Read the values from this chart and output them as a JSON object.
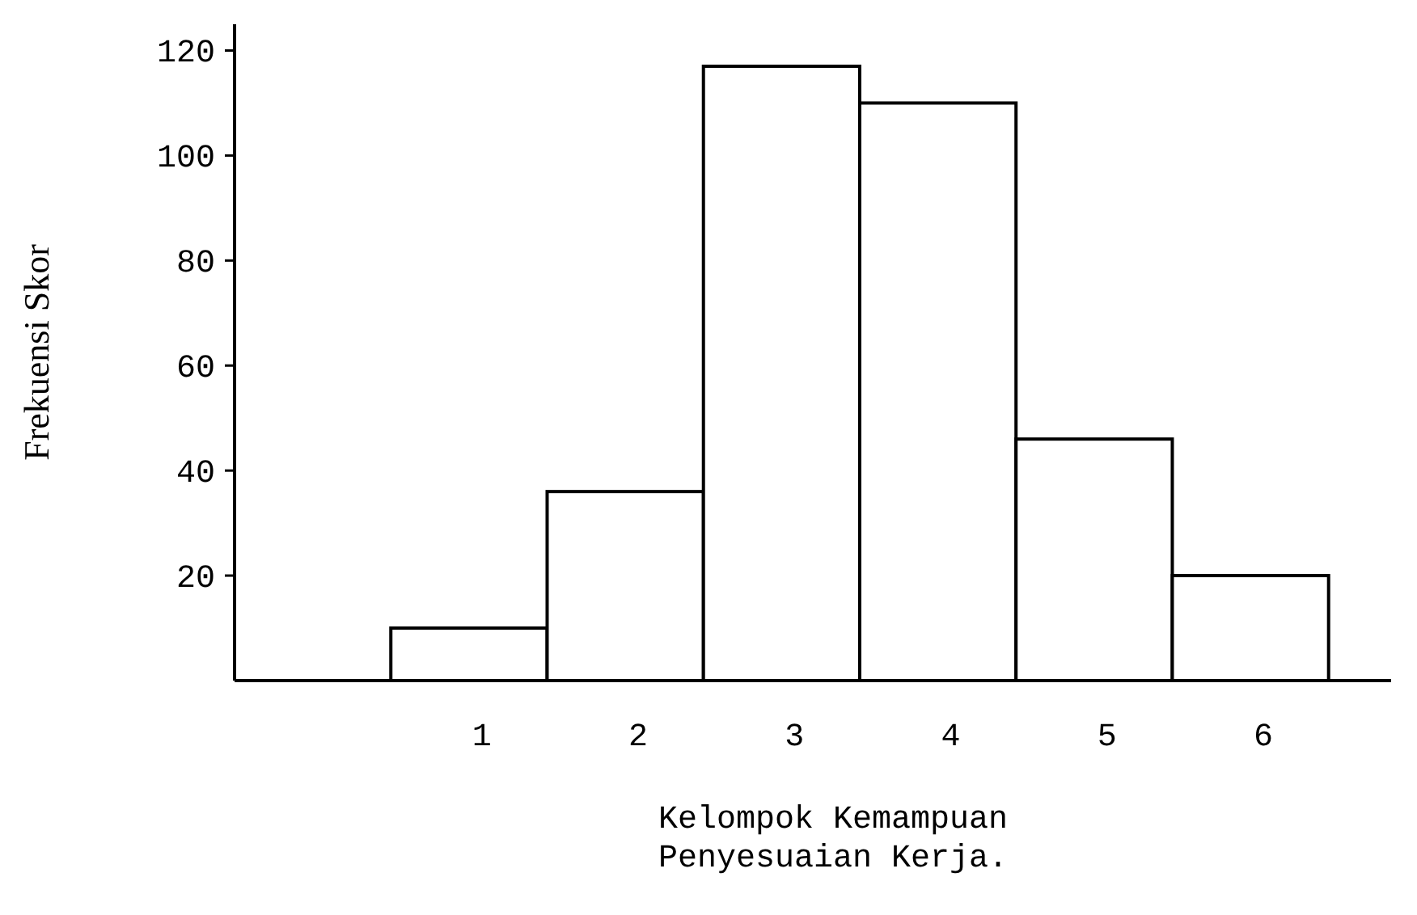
{
  "chart_data": {
    "type": "bar",
    "categories": [
      "1",
      "2",
      "3",
      "4",
      "5",
      "6"
    ],
    "values": [
      10,
      36,
      117,
      110,
      46,
      20
    ],
    "color": "#ffffff",
    "ylim": [
      0,
      125
    ],
    "yticks": [
      20,
      40,
      60,
      80,
      100,
      120
    ],
    "xlabel": "Kelompok Kemampuan\nPenyesuaian Kerja.",
    "ylabel": "Frekuensi Skor",
    "grid": false
  }
}
